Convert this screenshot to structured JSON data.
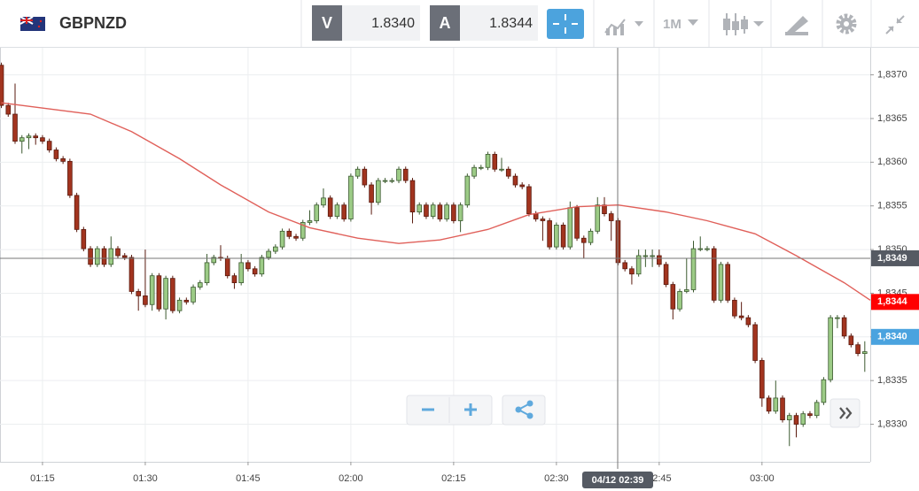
{
  "header": {
    "symbol": "GBPNZD",
    "bid_label": "V",
    "bid": "1.8340",
    "ask_label": "A",
    "ask": "1.8344",
    "timeframe": "1M"
  },
  "chart_data": {
    "type": "candlestick",
    "candles": [
      [
        1.83711,
        1.83714,
        1.83662,
        1.83665
      ],
      [
        1.83665,
        1.83668,
        1.83652,
        1.83655
      ],
      [
        1.83655,
        1.8369,
        1.83621,
        1.83624
      ],
      [
        1.83624,
        1.83631,
        1.8361,
        1.83628
      ],
      [
        1.83628,
        1.83633,
        1.83615,
        1.8363
      ],
      [
        1.8363,
        1.83633,
        1.8362,
        1.83628
      ],
      [
        1.83628,
        1.83631,
        1.83621,
        1.83624
      ],
      [
        1.83624,
        1.83627,
        1.83611,
        1.83614
      ],
      [
        1.83614,
        1.83617,
        1.83601,
        1.83604
      ],
      [
        1.83604,
        1.83607,
        1.83598,
        1.83601
      ],
      [
        1.83601,
        1.83604,
        1.83559,
        1.83562
      ],
      [
        1.83562,
        1.83565,
        1.8352,
        1.83523
      ],
      [
        1.83523,
        1.83526,
        1.83498,
        1.83501
      ],
      [
        1.83501,
        1.83504,
        1.8348,
        1.83483
      ],
      [
        1.83483,
        1.83504,
        1.8348,
        1.83501
      ],
      [
        1.83501,
        1.83504,
        1.8348,
        1.83483
      ],
      [
        1.83483,
        1.83515,
        1.8348,
        1.83501
      ],
      [
        1.83501,
        1.83504,
        1.8349,
        1.83493
      ],
      [
        1.83493,
        1.83496,
        1.83488,
        1.83491
      ],
      [
        1.83491,
        1.83494,
        1.83449,
        1.83452
      ],
      [
        1.83452,
        1.83455,
        1.8343,
        1.83447
      ],
      [
        1.83447,
        1.835,
        1.83434,
        1.83437
      ],
      [
        1.83437,
        1.83473,
        1.8343,
        1.8347
      ],
      [
        1.8347,
        1.83473,
        1.83429,
        1.83432
      ],
      [
        1.83432,
        1.8347,
        1.8342,
        1.83467
      ],
      [
        1.83467,
        1.8347,
        1.83427,
        1.8343
      ],
      [
        1.8343,
        1.83445,
        1.83427,
        1.83442
      ],
      [
        1.83442,
        1.83445,
        1.83437,
        1.8344
      ],
      [
        1.8344,
        1.8346,
        1.83437,
        1.83457
      ],
      [
        1.83457,
        1.83465,
        1.83454,
        1.83462
      ],
      [
        1.83462,
        1.83495,
        1.83459,
        1.83485
      ],
      [
        1.83485,
        1.83494,
        1.83482,
        1.83491
      ],
      [
        1.83491,
        1.83505,
        1.83487,
        1.8349
      ],
      [
        1.8349,
        1.83493,
        1.83467,
        1.8347
      ],
      [
        1.8347,
        1.83473,
        1.83455,
        1.83462
      ],
      [
        1.83462,
        1.83495,
        1.83459,
        1.83485
      ],
      [
        1.83485,
        1.83488,
        1.83475,
        1.83478
      ],
      [
        1.83478,
        1.83481,
        1.83469,
        1.83472
      ],
      [
        1.83472,
        1.83494,
        1.83469,
        1.83491
      ],
      [
        1.83491,
        1.83501,
        1.83488,
        1.83498
      ],
      [
        1.83498,
        1.83506,
        1.83495,
        1.83503
      ],
      [
        1.83503,
        1.83524,
        1.835,
        1.83521
      ],
      [
        1.83521,
        1.83524,
        1.83512,
        1.83515
      ],
      [
        1.83515,
        1.83518,
        1.8351,
        1.83513
      ],
      [
        1.83513,
        1.83534,
        1.8351,
        1.83531
      ],
      [
        1.83531,
        1.83545,
        1.83528,
        1.83533
      ],
      [
        1.83533,
        1.83554,
        1.8353,
        1.83551
      ],
      [
        1.83551,
        1.8357,
        1.83548,
        1.83559
      ],
      [
        1.83559,
        1.83562,
        1.83535,
        1.83538
      ],
      [
        1.83538,
        1.83554,
        1.83535,
        1.83551
      ],
      [
        1.83551,
        1.83554,
        1.83532,
        1.83535
      ],
      [
        1.83535,
        1.83587,
        1.83532,
        1.83584
      ],
      [
        1.83584,
        1.83595,
        1.83581,
        1.83592
      ],
      [
        1.83592,
        1.83595,
        1.83571,
        1.83574
      ],
      [
        1.83574,
        1.83577,
        1.8354,
        1.83554
      ],
      [
        1.83554,
        1.83582,
        1.83551,
        1.83579
      ],
      [
        1.83579,
        1.83582,
        1.83576,
        1.83579
      ],
      [
        1.83579,
        1.83582,
        1.83576,
        1.83579
      ],
      [
        1.83579,
        1.83595,
        1.83576,
        1.83592
      ],
      [
        1.83592,
        1.83595,
        1.83576,
        1.83579
      ],
      [
        1.83579,
        1.83582,
        1.8353,
        1.83543
      ],
      [
        1.83543,
        1.83554,
        1.8354,
        1.83551
      ],
      [
        1.83551,
        1.83554,
        1.83535,
        1.83538
      ],
      [
        1.83538,
        1.83554,
        1.83535,
        1.83551
      ],
      [
        1.83551,
        1.83554,
        1.83532,
        1.83535
      ],
      [
        1.83535,
        1.83554,
        1.83532,
        1.83551
      ],
      [
        1.83551,
        1.83554,
        1.8353,
        1.83533
      ],
      [
        1.83533,
        1.83554,
        1.8352,
        1.83551
      ],
      [
        1.83551,
        1.83587,
        1.83548,
        1.83584
      ],
      [
        1.83584,
        1.83597,
        1.83581,
        1.83594
      ],
      [
        1.83594,
        1.83597,
        1.83591,
        1.83594
      ],
      [
        1.83594,
        1.83612,
        1.83591,
        1.83609
      ],
      [
        1.83609,
        1.83612,
        1.83589,
        1.83592
      ],
      [
        1.83592,
        1.83605,
        1.83589,
        1.83592
      ],
      [
        1.83592,
        1.83595,
        1.83581,
        1.83584
      ],
      [
        1.83584,
        1.83587,
        1.83571,
        1.83574
      ],
      [
        1.83574,
        1.83577,
        1.83569,
        1.83572
      ],
      [
        1.83572,
        1.83575,
        1.83538,
        1.83541
      ],
      [
        1.83541,
        1.83544,
        1.83532,
        1.83535
      ],
      [
        1.83535,
        1.83538,
        1.8351,
        1.83533
      ],
      [
        1.83533,
        1.83536,
        1.835,
        1.83503
      ],
      [
        1.83503,
        1.83531,
        1.835,
        1.83528
      ],
      [
        1.83528,
        1.83531,
        1.835,
        1.83503
      ],
      [
        1.83503,
        1.83555,
        1.835,
        1.83548
      ],
      [
        1.83548,
        1.83551,
        1.8351,
        1.83513
      ],
      [
        1.83513,
        1.83516,
        1.8349,
        1.83508
      ],
      [
        1.83508,
        1.83524,
        1.83505,
        1.83521
      ],
      [
        1.83521,
        1.8356,
        1.83518,
        1.83551
      ],
      [
        1.83551,
        1.8356,
        1.83538,
        1.83541
      ],
      [
        1.83541,
        1.83544,
        1.8351,
        1.83533
      ],
      [
        1.83533,
        1.83536,
        1.83482,
        1.83485
      ],
      [
        1.83485,
        1.83488,
        1.83475,
        1.83478
      ],
      [
        1.83478,
        1.83481,
        1.8346,
        1.83472
      ],
      [
        1.83472,
        1.835,
        1.83469,
        1.83493
      ],
      [
        1.83493,
        1.835,
        1.8348,
        1.83493
      ],
      [
        1.83493,
        1.835,
        1.8348,
        1.83493
      ],
      [
        1.83493,
        1.835,
        1.8348,
        1.83483
      ],
      [
        1.83483,
        1.83486,
        1.83457,
        1.8346
      ],
      [
        1.8346,
        1.83463,
        1.8342,
        1.83432
      ],
      [
        1.83432,
        1.83455,
        1.83429,
        1.83452
      ],
      [
        1.83452,
        1.8349,
        1.8345,
        1.83454
      ],
      [
        1.83454,
        1.8351,
        1.83451,
        1.83501
      ],
      [
        1.83501,
        1.83515,
        1.83498,
        1.83501
      ],
      [
        1.83501,
        1.83504,
        1.83498,
        1.83501
      ],
      [
        1.83501,
        1.83504,
        1.83439,
        1.83442
      ],
      [
        1.83442,
        1.83486,
        1.83439,
        1.83483
      ],
      [
        1.83483,
        1.83486,
        1.83439,
        1.83442
      ],
      [
        1.83442,
        1.83445,
        1.83421,
        1.83424
      ],
      [
        1.83424,
        1.8344,
        1.83419,
        1.83422
      ],
      [
        1.83422,
        1.83425,
        1.83411,
        1.83414
      ],
      [
        1.83414,
        1.83417,
        1.8337,
        1.83373
      ],
      [
        1.83373,
        1.83376,
        1.8332,
        1.8333
      ],
      [
        1.8333,
        1.83333,
        1.83312,
        1.83315
      ],
      [
        1.83315,
        1.8335,
        1.83312,
        1.8333
      ],
      [
        1.8333,
        1.83333,
        1.83302,
        1.83305
      ],
      [
        1.83305,
        1.83313,
        1.83275,
        1.8331
      ],
      [
        1.8331,
        1.83313,
        1.83285,
        1.833
      ],
      [
        1.833,
        1.83315,
        1.83297,
        1.83312
      ],
      [
        1.83312,
        1.83315,
        1.83307,
        1.8331
      ],
      [
        1.8331,
        1.83328,
        1.83307,
        1.83325
      ],
      [
        1.83325,
        1.83354,
        1.83322,
        1.83351
      ],
      [
        1.83351,
        1.83425,
        1.83348,
        1.83422
      ],
      [
        1.83422,
        1.83425,
        1.8341,
        1.83422
      ],
      [
        1.83422,
        1.83425,
        1.83398,
        1.83401
      ],
      [
        1.83401,
        1.83404,
        1.83388,
        1.83391
      ],
      [
        1.83391,
        1.83394,
        1.83378,
        1.83381
      ],
      [
        1.83381,
        1.83395,
        1.8336,
        1.83383
      ]
    ],
    "up_color": "#9ccb86",
    "down_color": "#a2341f",
    "moving_average": {
      "color": "#e0605a",
      "x": [
        0,
        13,
        19,
        26,
        32,
        39,
        45,
        52,
        58,
        64,
        71,
        77,
        84,
        90,
        97,
        103,
        110,
        116,
        123,
        126.8
      ],
      "values": [
        1.83668,
        1.83655,
        1.83635,
        1.83604,
        1.83574,
        1.83543,
        1.83525,
        1.83513,
        1.83507,
        1.83511,
        1.83523,
        1.8354,
        1.83549,
        1.83551,
        1.83543,
        1.83533,
        1.83518,
        1.83493,
        1.83462,
        1.83442
      ]
    },
    "xlim": [
      -0.2,
      126.8
    ],
    "xticks": [
      {
        "value": 6,
        "label": "01:15"
      },
      {
        "value": 21,
        "label": "01:30"
      },
      {
        "value": 36,
        "label": "01:45"
      },
      {
        "value": 51,
        "label": "02:00"
      },
      {
        "value": 66,
        "label": "02:15"
      },
      {
        "value": 81,
        "label": "02:30"
      },
      {
        "value": 96,
        "label": "02:45"
      },
      {
        "value": 111,
        "label": "03:00"
      }
    ],
    "ylim": [
      1.83257,
      1.83731
    ],
    "yticks": [
      {
        "value": 1.833,
        "label": "1,8330"
      },
      {
        "value": 1.8335,
        "label": "1,8335"
      },
      {
        "value": 1.834,
        "label": "1,8340"
      },
      {
        "value": 1.8345,
        "label": "1,8345"
      },
      {
        "value": 1.835,
        "label": "1,8350"
      },
      {
        "value": 1.8355,
        "label": "1,8355"
      },
      {
        "value": 1.836,
        "label": "1,8360"
      },
      {
        "value": 1.8365,
        "label": "1,8365"
      },
      {
        "value": 1.837,
        "label": "1,8370"
      }
    ],
    "grid": true,
    "crosshair": {
      "value": 1.8349,
      "label": "1,8349",
      "time": "04/12 02:39"
    },
    "price_tags": [
      {
        "value": 1.8344,
        "label": "1,8344",
        "color": "#ff0000"
      },
      {
        "value": 1.834,
        "label": "1,8340",
        "color": "#4aa3df"
      }
    ]
  }
}
